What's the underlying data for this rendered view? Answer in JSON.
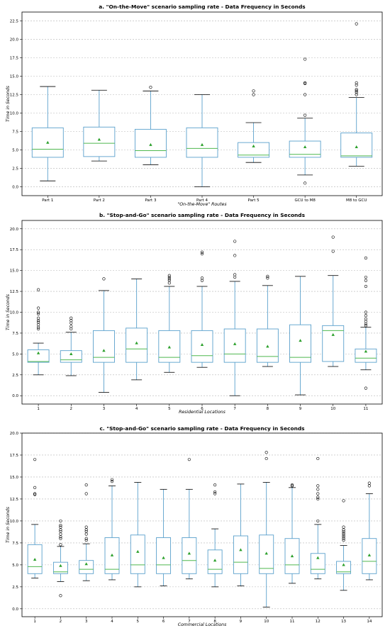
{
  "chart_data": [
    {
      "type": "box",
      "title": "a. \"On-the-Move\" scenario sampling rate - Data Frequency in Seconds",
      "xlabel": "\"On-the-Move\" Routes",
      "ylabel": "Time in Seconds",
      "ylim": [
        -1.2,
        23.7
      ],
      "yticks": [
        "0.0",
        "2.5",
        "5.0",
        "7.5",
        "10.0",
        "12.5",
        "15.0",
        "17.5",
        "20.0",
        "22.5"
      ],
      "categories": [
        "Part 1",
        "Part 2",
        "Part 3",
        "Part 4",
        "Part 5",
        "GCU to M8",
        "M8 to GCU"
      ],
      "boxes": [
        {
          "whislo": 0.8,
          "q1": 4.0,
          "med": 5.1,
          "q3": 8.0,
          "whishi": 13.6,
          "mean": 6.0,
          "fliers": []
        },
        {
          "whislo": 3.5,
          "q1": 4.1,
          "med": 5.9,
          "q3": 8.1,
          "whishi": 13.1,
          "mean": 6.4,
          "fliers": []
        },
        {
          "whislo": 3.0,
          "q1": 4.0,
          "med": 4.9,
          "q3": 7.8,
          "whishi": 13.0,
          "mean": 5.7,
          "fliers": [
            13.5
          ]
        },
        {
          "whislo": 0.0,
          "q1": 4.0,
          "med": 5.2,
          "q3": 8.0,
          "whishi": 12.5,
          "mean": 5.7,
          "fliers": []
        },
        {
          "whislo": 3.3,
          "q1": 4.0,
          "med": 4.3,
          "q3": 6.0,
          "whishi": 8.7,
          "mean": 5.5,
          "fliers": [
            12.5,
            13.0
          ]
        },
        {
          "whislo": 1.6,
          "q1": 4.0,
          "med": 4.4,
          "q3": 6.2,
          "whishi": 9.3,
          "mean": 5.4,
          "fliers": [
            0.5,
            9.7,
            12.5,
            14.0,
            14.1,
            17.3
          ]
        },
        {
          "whislo": 2.8,
          "q1": 4.0,
          "med": 4.2,
          "q3": 7.3,
          "whishi": 12.1,
          "mean": 5.4,
          "fliers": [
            12.5,
            12.8,
            13.0,
            13.2,
            13.8,
            14.1,
            22.1
          ]
        }
      ]
    },
    {
      "type": "box",
      "title": "b. \"Stop-and-Go\" scenario sampling rate - Data Frequency in Seconds",
      "xlabel": "Residential Locations",
      "ylabel": "Time in Seconds",
      "ylim": [
        -1.0,
        21.0
      ],
      "yticks": [
        "0.0",
        "2.5",
        "5.0",
        "7.5",
        "10.0",
        "12.5",
        "15.0",
        "17.5",
        "20.0"
      ],
      "categories": [
        "1",
        "2",
        "3",
        "4",
        "5",
        "6",
        "7",
        "8",
        "9",
        "10",
        "11"
      ],
      "boxes": [
        {
          "whislo": 2.5,
          "q1": 4.0,
          "med": 4.1,
          "q3": 5.5,
          "whishi": 6.3,
          "mean": 5.1,
          "fliers": [
            8.0,
            8.2,
            8.5,
            8.8,
            9.0,
            9.3,
            9.8,
            10.0,
            10.5,
            12.7
          ]
        },
        {
          "whislo": 2.4,
          "q1": 4.0,
          "med": 4.3,
          "q3": 5.4,
          "whishi": 7.6,
          "mean": 5.0,
          "fliers": [
            8.0,
            8.3,
            8.7,
            9.0,
            9.3
          ]
        },
        {
          "whislo": 0.4,
          "q1": 4.0,
          "med": 4.6,
          "q3": 7.8,
          "whishi": 12.6,
          "mean": 5.4,
          "fliers": [
            14.0
          ]
        },
        {
          "whislo": 1.9,
          "q1": 4.0,
          "med": 5.6,
          "q3": 8.1,
          "whishi": 14.0,
          "mean": 6.3,
          "fliers": []
        },
        {
          "whislo": 2.8,
          "q1": 4.0,
          "med": 4.6,
          "q3": 7.8,
          "whishi": 13.1,
          "mean": 5.8,
          "fliers": [
            13.5,
            13.8,
            14.0,
            14.2,
            14.4
          ]
        },
        {
          "whislo": 3.4,
          "q1": 4.0,
          "med": 4.8,
          "q3": 7.8,
          "whishi": 13.1,
          "mean": 6.1,
          "fliers": [
            13.8,
            14.1,
            17.0,
            17.2
          ]
        },
        {
          "whislo": 0.0,
          "q1": 4.0,
          "med": 5.0,
          "q3": 8.0,
          "whishi": 13.7,
          "mean": 6.2,
          "fliers": [
            14.2,
            14.5,
            16.8,
            18.5
          ]
        },
        {
          "whislo": 3.5,
          "q1": 4.0,
          "med": 4.7,
          "q3": 8.0,
          "whishi": 13.2,
          "mean": 5.9,
          "fliers": [
            14.1,
            14.3
          ]
        },
        {
          "whislo": 0.1,
          "q1": 4.0,
          "med": 4.6,
          "q3": 8.5,
          "whishi": 14.3,
          "mean": 6.6,
          "fliers": []
        },
        {
          "whislo": 3.5,
          "q1": 4.1,
          "med": 7.8,
          "q3": 8.4,
          "whishi": 14.4,
          "mean": 7.3,
          "fliers": [
            17.3,
            19.0
          ]
        },
        {
          "whislo": 3.1,
          "q1": 4.0,
          "med": 4.5,
          "q3": 5.6,
          "whishi": 8.2,
          "mean": 5.3,
          "fliers": [
            0.9,
            8.4,
            8.6,
            8.9,
            9.2,
            9.6,
            10.0,
            13.1,
            13.8,
            14.2,
            16.5
          ]
        }
      ]
    },
    {
      "type": "box",
      "title": "c. \"Stop-and-Go\" scenario sampling rate - Data Frequency in Seconds",
      "xlabel": "Commercial Locations",
      "ylabel": "Time in Seconds",
      "ylim": [
        -0.9,
        20.0
      ],
      "yticks": [
        "0.0",
        "2.5",
        "5.0",
        "7.5",
        "10.0",
        "12.5",
        "15.0",
        "17.5",
        "20.0"
      ],
      "categories": [
        "1",
        "2",
        "3",
        "4",
        "5",
        "6",
        "7",
        "8",
        "9",
        "10",
        "11",
        "12",
        "13",
        "14"
      ],
      "boxes": [
        {
          "whislo": 3.5,
          "q1": 4.0,
          "med": 4.8,
          "q3": 7.3,
          "whishi": 9.6,
          "mean": 5.6,
          "fliers": [
            13.0,
            13.1,
            13.8,
            17.0
          ]
        },
        {
          "whislo": 3.1,
          "q1": 4.0,
          "med": 4.2,
          "q3": 5.3,
          "whishi": 7.1,
          "mean": 4.9,
          "fliers": [
            1.5,
            7.3,
            8.0,
            8.2,
            8.5,
            8.8,
            9.0,
            9.3,
            9.5,
            10.0
          ]
        },
        {
          "whislo": 3.2,
          "q1": 4.0,
          "med": 4.5,
          "q3": 5.5,
          "whishi": 7.4,
          "mean": 5.1,
          "fliers": [
            7.8,
            8.0,
            8.5,
            8.8,
            9.0,
            9.3,
            13.1,
            14.1
          ]
        },
        {
          "whislo": 3.3,
          "q1": 4.0,
          "med": 4.5,
          "q3": 8.1,
          "whishi": 14.0,
          "mean": 6.1,
          "fliers": [
            14.5,
            14.7
          ]
        },
        {
          "whislo": 2.5,
          "q1": 4.0,
          "med": 5.0,
          "q3": 8.4,
          "whishi": 14.4,
          "mean": 6.5,
          "fliers": []
        },
        {
          "whislo": 2.6,
          "q1": 4.0,
          "med": 5.0,
          "q3": 8.1,
          "whishi": 13.6,
          "mean": 5.8,
          "fliers": []
        },
        {
          "whislo": 3.4,
          "q1": 4.0,
          "med": 5.5,
          "q3": 8.1,
          "whishi": 13.6,
          "mean": 6.3,
          "fliers": [
            17.0
          ]
        },
        {
          "whislo": 2.5,
          "q1": 4.0,
          "med": 4.5,
          "q3": 6.7,
          "whishi": 9.1,
          "mean": 5.5,
          "fliers": [
            13.1,
            13.3,
            14.1
          ]
        },
        {
          "whislo": 2.6,
          "q1": 4.0,
          "med": 5.3,
          "q3": 8.3,
          "whishi": 14.2,
          "mean": 6.7,
          "fliers": []
        },
        {
          "whislo": 0.2,
          "q1": 4.0,
          "med": 4.6,
          "q3": 8.4,
          "whishi": 14.4,
          "mean": 6.3,
          "fliers": [
            17.1,
            17.8
          ]
        },
        {
          "whislo": 2.9,
          "q1": 4.0,
          "med": 5.0,
          "q3": 8.0,
          "whishi": 13.8,
          "mean": 6.0,
          "fliers": [
            14.0,
            14.1
          ]
        },
        {
          "whislo": 3.4,
          "q1": 4.0,
          "med": 4.5,
          "q3": 6.3,
          "whishi": 9.6,
          "mean": 5.8,
          "fliers": [
            10.0,
            12.5,
            12.7,
            13.1,
            13.6,
            14.0,
            17.1
          ]
        },
        {
          "whislo": 2.1,
          "q1": 4.0,
          "med": 4.2,
          "q3": 5.4,
          "whishi": 7.2,
          "mean": 5.0,
          "fliers": [
            7.8,
            8.0,
            8.2,
            8.4,
            8.6,
            8.8,
            9.0,
            9.3,
            12.3
          ]
        },
        {
          "whislo": 3.3,
          "q1": 4.0,
          "med": 5.4,
          "q3": 8.0,
          "whishi": 13.1,
          "mean": 6.1,
          "fliers": [
            14.0,
            14.3
          ]
        }
      ]
    }
  ]
}
